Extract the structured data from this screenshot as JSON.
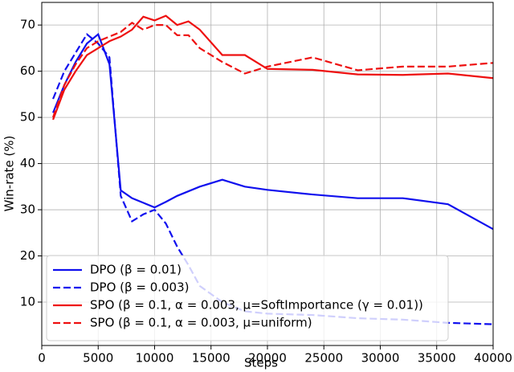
{
  "chart_data": {
    "type": "line",
    "xlabel": "Steps",
    "ylabel": "Win-rate (%)",
    "x": [
      1000,
      2000,
      3000,
      4000,
      5000,
      6000,
      7000,
      8000,
      9000,
      10000,
      11000,
      12000,
      13000,
      14000,
      16000,
      18000,
      20000,
      24000,
      28000,
      32000,
      36000,
      40000
    ],
    "series": [
      {
        "name": "DPO (β = 0.01)",
        "color": "#1010ee",
        "dash": false,
        "values": [
          51,
          57,
          62,
          66,
          68,
          61.5,
          34.2,
          32.5,
          31.5,
          30.5,
          31.7,
          33,
          34,
          35,
          36.5,
          35,
          34.3,
          33.3,
          32.5,
          32.5,
          31.2,
          25.8
        ]
      },
      {
        "name": "DPO (β = 0.003)",
        "color": "#1010ee",
        "dash": true,
        "values": [
          54,
          60,
          64,
          68,
          66,
          63,
          33,
          27.5,
          29,
          30,
          27,
          22,
          18,
          13.5,
          10,
          8,
          7.5,
          7.2,
          6.5,
          6.2,
          5.5,
          5.2
        ]
      },
      {
        "name": "SPO (β = 0.1, α = 0.003, μ=SoftImportance (γ = 0.01))",
        "color": "#ee1010",
        "dash": false,
        "values": [
          49.5,
          56,
          60,
          63.5,
          65,
          66.5,
          67.5,
          69,
          71.8,
          71,
          72,
          70,
          70.8,
          69,
          63.5,
          63.5,
          60.5,
          60.3,
          59.3,
          59.2,
          59.5,
          58.5
        ]
      },
      {
        "name": "SPO (β = 0.1, α = 0.003, μ=uniform)",
        "color": "#ee1010",
        "dash": true,
        "values": [
          50,
          57,
          61.5,
          65,
          66.5,
          67.5,
          68.5,
          70.5,
          69,
          70,
          70,
          67.8,
          67.8,
          65,
          62,
          59.5,
          61,
          63,
          60.2,
          61,
          61,
          61.8
        ]
      }
    ],
    "xlim": [
      0,
      40000
    ],
    "xticks": [
      0,
      5000,
      10000,
      15000,
      20000,
      25000,
      30000,
      35000,
      40000
    ],
    "ylim": [
      0.6,
      74.9
    ],
    "yticks": [
      10,
      20,
      30,
      40,
      50,
      60,
      70
    ],
    "grid": true,
    "legend": "lower left"
  }
}
